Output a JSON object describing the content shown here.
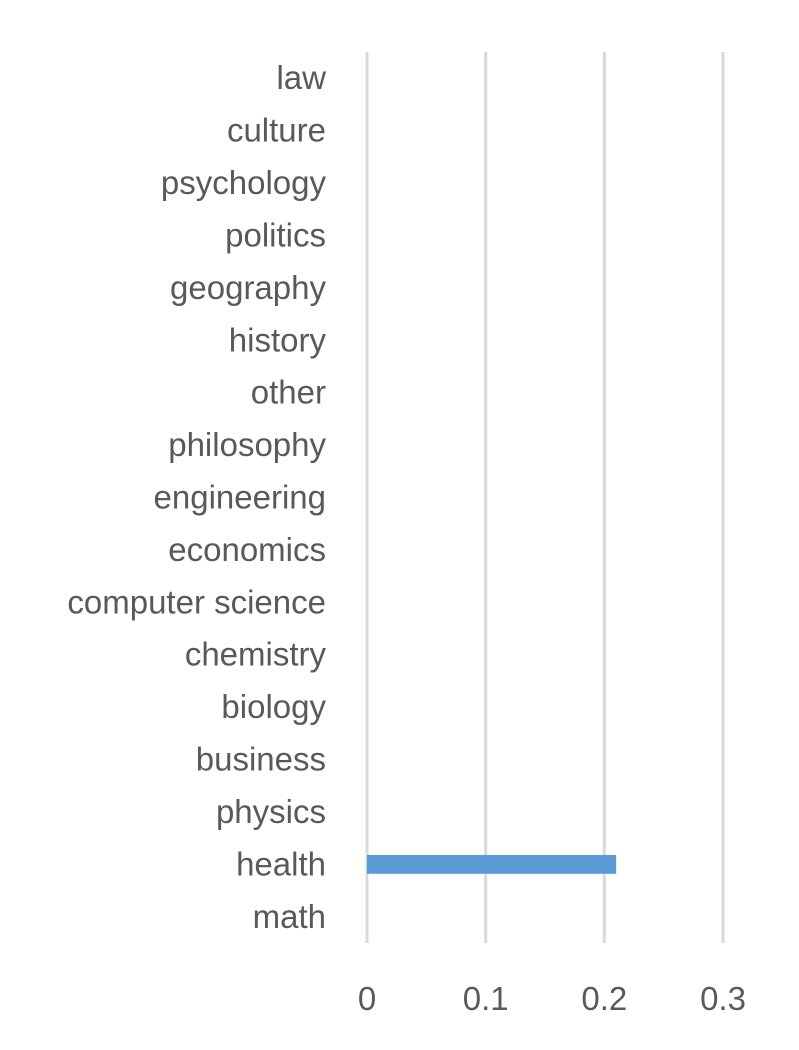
{
  "chart_data": {
    "type": "bar",
    "orientation": "horizontal",
    "categories": [
      "math",
      "health",
      "physics",
      "business",
      "biology",
      "chemistry",
      "computer science",
      "economics",
      "engineering",
      "philosophy",
      "other",
      "history",
      "geography",
      "politics",
      "psychology",
      "culture",
      "law"
    ],
    "values": [
      0,
      0.21,
      0,
      0,
      0,
      0,
      0,
      0,
      0,
      0,
      0,
      0,
      0,
      0,
      0,
      0,
      0
    ],
    "xlim": [
      0,
      0.3
    ],
    "xticks": [
      "0",
      "0.1",
      "0.2",
      "0.3"
    ],
    "title": "",
    "xlabel": "",
    "ylabel": "",
    "grid": "vertical",
    "legend": "none",
    "colors": {
      "bar": "#5b9bd5",
      "grid": "#d9d9d9",
      "text": "#595959"
    }
  }
}
